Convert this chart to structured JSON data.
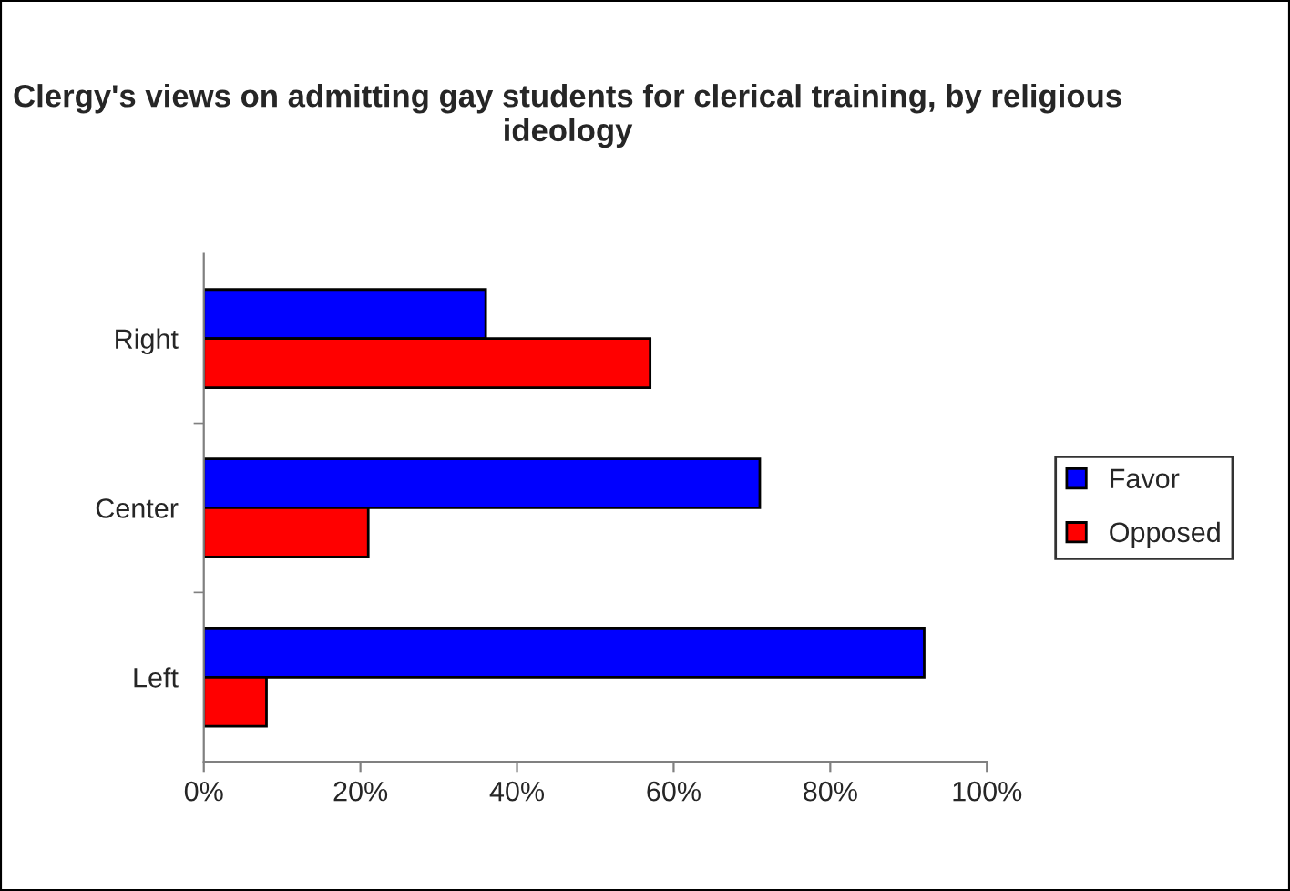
{
  "chart_data": {
    "type": "bar",
    "orientation": "horizontal",
    "title": "Clergy's views on admitting gay students for clerical training, by religious ideology",
    "categories": [
      "Right",
      "Center",
      "Left"
    ],
    "series": [
      {
        "name": "Favor",
        "color": "#0000ff",
        "values": [
          36,
          71,
          92
        ]
      },
      {
        "name": "Opposed",
        "color": "#ff0000",
        "values": [
          57,
          21,
          8
        ]
      }
    ],
    "xlim": [
      0,
      100
    ],
    "xticks": [
      {
        "value": 0,
        "label": "0%"
      },
      {
        "value": 20,
        "label": "20%"
      },
      {
        "value": 40,
        "label": "40%"
      },
      {
        "value": 60,
        "label": "60%"
      },
      {
        "value": 80,
        "label": "80%"
      },
      {
        "value": 100,
        "label": "100%"
      }
    ],
    "grid": false,
    "legend": "right"
  }
}
